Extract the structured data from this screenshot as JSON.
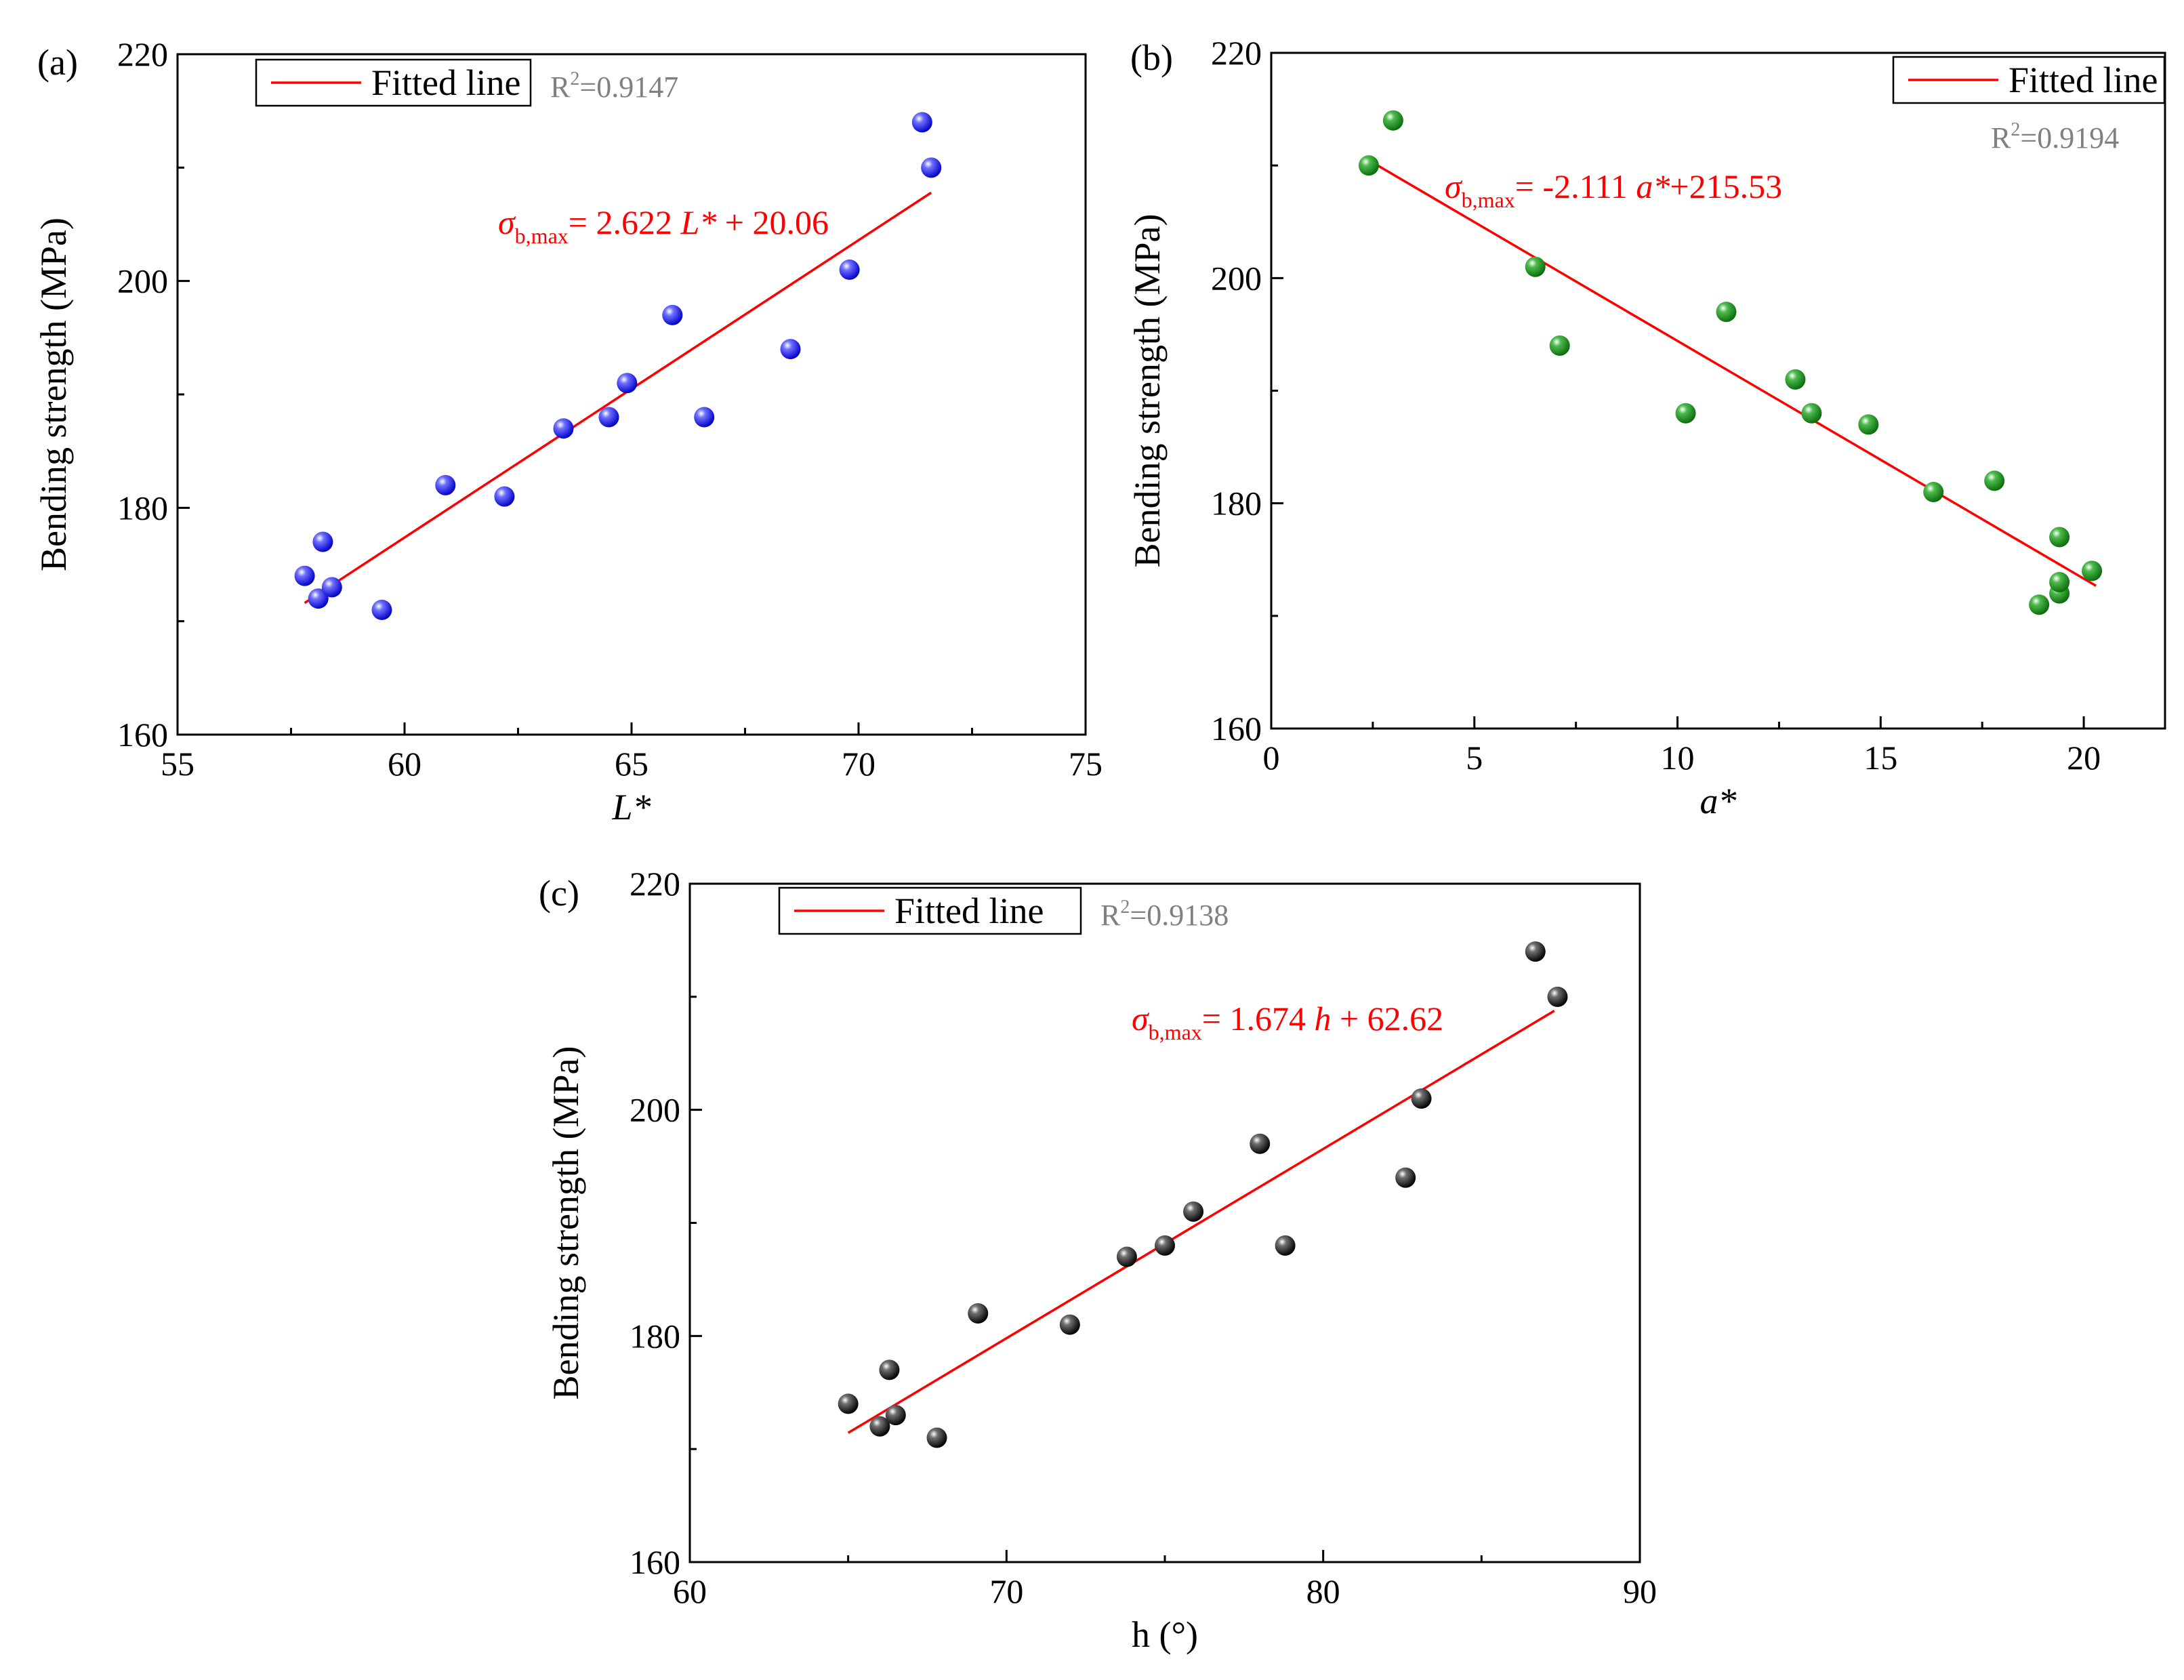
{
  "colors": {
    "fit_line": "#ff0000",
    "r2_text": "#808080",
    "axis": "#000000"
  },
  "chart_data": [
    {
      "panel": "(a)",
      "type": "scatter",
      "xlabel": "L*",
      "ylabel": "Bending strength (MPa)",
      "xlim": [
        55,
        75
      ],
      "ylim": [
        160,
        220
      ],
      "xticks": [
        55,
        60,
        65,
        70,
        75
      ],
      "yticks": [
        160,
        180,
        200,
        220
      ],
      "legend": {
        "label": "Fitted line",
        "placement": "top-left"
      },
      "r2": "0.9147",
      "equation": {
        "lhs": "σ",
        "sub": "b,max",
        "rhs_parts": [
          "= 2.622 ",
          "L*",
          " + 20.06"
        ]
      },
      "marker_color": "#1f1ff0",
      "series": [
        {
          "points": [
            [
              57.8,
              174
            ],
            [
              58.1,
              172
            ],
            [
              58.2,
              177
            ],
            [
              58.4,
              173
            ],
            [
              59.5,
              171
            ],
            [
              60.9,
              182
            ],
            [
              62.2,
              181
            ],
            [
              63.5,
              187
            ],
            [
              64.5,
              188
            ],
            [
              64.9,
              191
            ],
            [
              65.9,
              197
            ],
            [
              66.6,
              188
            ],
            [
              68.5,
              194
            ],
            [
              69.8,
              201
            ],
            [
              71.4,
              214
            ],
            [
              71.6,
              210
            ]
          ]
        }
      ],
      "fit": {
        "slope": 2.622,
        "intercept": 20.06,
        "x_range": [
          57.8,
          71.6
        ]
      }
    },
    {
      "panel": "(b)",
      "type": "scatter",
      "xlabel": "a*",
      "ylabel": "Bending strength (MPa)",
      "xlim": [
        0,
        22
      ],
      "ylim": [
        160,
        220
      ],
      "xticks": [
        0,
        5,
        10,
        15,
        20
      ],
      "yticks": [
        160,
        180,
        200,
        220
      ],
      "legend": {
        "label": "Fitted line",
        "placement": "top-right"
      },
      "r2": "0.9194",
      "equation": {
        "lhs": "σ",
        "sub": "b,max",
        "rhs_parts": [
          "= -2.111 ",
          "a*",
          "+215.53"
        ]
      },
      "marker_color": "#1a8f1a",
      "series": [
        {
          "points": [
            [
              2.4,
              210
            ],
            [
              3.0,
              214
            ],
            [
              6.5,
              201
            ],
            [
              7.1,
              194
            ],
            [
              10.2,
              188
            ],
            [
              11.2,
              197
            ],
            [
              12.9,
              191
            ],
            [
              13.3,
              188
            ],
            [
              14.7,
              187
            ],
            [
              16.3,
              181
            ],
            [
              17.8,
              182
            ],
            [
              18.9,
              171
            ],
            [
              19.4,
              177
            ],
            [
              19.4,
              172
            ],
            [
              19.4,
              173
            ],
            [
              20.2,
              174
            ]
          ]
        }
      ],
      "fit": {
        "slope": -2.111,
        "intercept": 215.53,
        "x_range": [
          2.4,
          20.3
        ]
      }
    },
    {
      "panel": "(c)",
      "type": "scatter",
      "xlabel": "h (°)",
      "ylabel": "Bending strength (MPa)",
      "xlim": [
        60,
        90
      ],
      "ylim": [
        160,
        220
      ],
      "xticks": [
        60,
        70,
        80,
        90
      ],
      "yticks": [
        160,
        180,
        200,
        220
      ],
      "legend": {
        "label": "Fitted line",
        "placement": "top-left"
      },
      "r2": "0.9138",
      "equation": {
        "lhs": "σ",
        "sub": "b,max",
        "rhs_parts": [
          "= 1.674 ",
          "h",
          " + 62.62"
        ]
      },
      "marker_color": "#1a1a1a",
      "series": [
        {
          "points": [
            [
              65.0,
              174
            ],
            [
              66.0,
              172
            ],
            [
              66.3,
              177
            ],
            [
              66.5,
              173
            ],
            [
              67.8,
              171
            ],
            [
              69.1,
              182
            ],
            [
              72.0,
              181
            ],
            [
              73.8,
              187
            ],
            [
              75.0,
              188
            ],
            [
              75.9,
              191
            ],
            [
              78.0,
              197
            ],
            [
              78.8,
              188
            ],
            [
              82.6,
              194
            ],
            [
              83.1,
              201
            ],
            [
              86.7,
              214
            ],
            [
              87.4,
              210
            ]
          ]
        }
      ],
      "fit": {
        "slope": 1.674,
        "intercept": 62.62,
        "x_range": [
          65.0,
          87.3
        ]
      }
    }
  ]
}
